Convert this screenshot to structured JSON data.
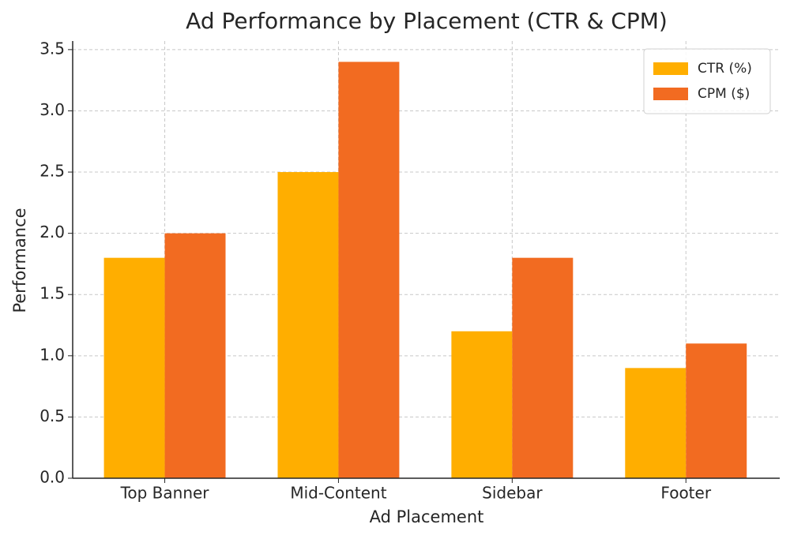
{
  "chart_data": {
    "type": "bar",
    "title": "Ad Performance by Placement (CTR & CPM)",
    "x_label": "Ad Placement",
    "y_label": "Performance",
    "categories": [
      "Top Banner",
      "Mid-Content",
      "Sidebar",
      "Footer"
    ],
    "series": [
      {
        "name": "CTR (%)",
        "color": "#ffae00",
        "values": [
          1.8,
          2.5,
          1.2,
          0.9
        ]
      },
      {
        "name": "CPM ($)",
        "color": "#f26b21",
        "values": [
          2.0,
          3.4,
          1.8,
          1.1
        ]
      }
    ],
    "ylim": [
      0,
      3.57
    ],
    "yticks": [
      {
        "value": 0,
        "label": "0.0"
      },
      0.5,
      {
        "value": 1,
        "label": "1.0"
      },
      1.5,
      {
        "value": 2,
        "label": "2.0"
      },
      2.5,
      {
        "value": 3,
        "label": "3.0"
      },
      3.5
    ],
    "grid": true,
    "legend": "upper right"
  }
}
